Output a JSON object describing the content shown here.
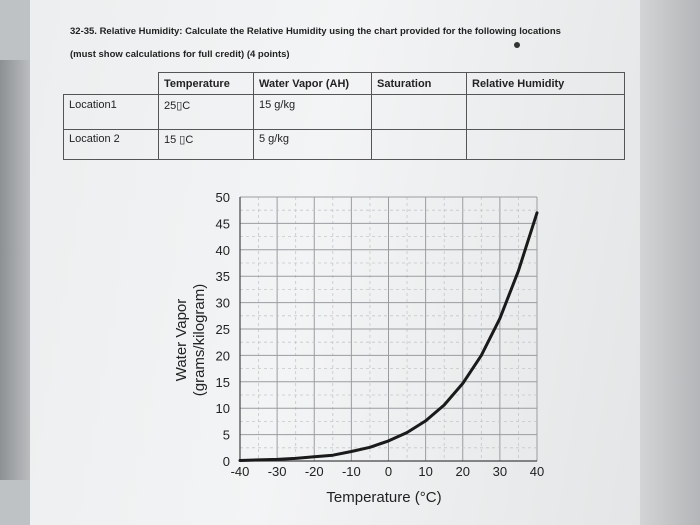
{
  "question": {
    "line1": "32-35. Relative Humidity: Calculate the Relative Humidity using the chart provided for the following locations",
    "line2": "(must show calculations for full credit) (4 points)"
  },
  "table": {
    "headers": [
      "",
      "Temperature",
      "Water Vapor (AH)",
      "Saturation",
      "Relative Humidity"
    ],
    "rows": [
      [
        "Location1",
        "25▯C",
        "15 g/kg",
        "",
        ""
      ],
      [
        "Location 2",
        "15 ▯C",
        "5 g/kg",
        "",
        ""
      ]
    ]
  },
  "chart_data": {
    "type": "line",
    "title": "",
    "xlabel": "Temperature (°C)",
    "ylabel": [
      "Water Vapor",
      "(grams/kilogram)"
    ],
    "xlim": [
      -40,
      40
    ],
    "ylim": [
      0,
      50
    ],
    "xticks": [
      -40,
      -30,
      -20,
      -10,
      0,
      10,
      20,
      30,
      40
    ],
    "yticks": [
      0,
      5,
      10,
      15,
      20,
      25,
      30,
      35,
      40,
      45,
      50
    ],
    "grid": true,
    "series": [
      {
        "color": "#1a1a1a",
        "x": [
          -40,
          -35,
          -30,
          -25,
          -20,
          -15,
          -10,
          -5,
          0,
          5,
          10,
          15,
          20,
          25,
          30,
          35,
          40
        ],
        "y": [
          0.1,
          0.2,
          0.3,
          0.5,
          0.8,
          1.1,
          1.8,
          2.6,
          3.8,
          5.4,
          7.6,
          10.6,
          14.7,
          20.0,
          27.0,
          36.0,
          47.0
        ]
      }
    ]
  }
}
